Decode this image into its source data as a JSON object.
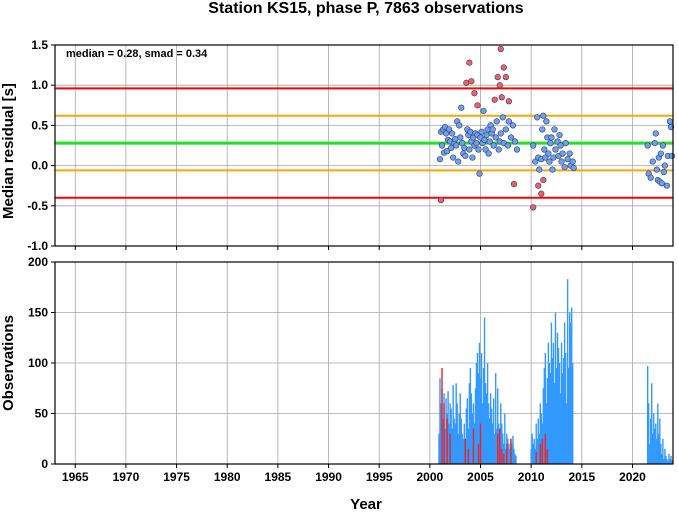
{
  "chart_data": [
    {
      "type": "scatter",
      "title": "Station KS15, phase P, 7863 observations",
      "ylabel": "Median residual [s]",
      "xlabel": "",
      "xlim": [
        1963,
        2024
      ],
      "ylim": [
        -1.0,
        1.5
      ],
      "xticks": [
        1965,
        1970,
        1975,
        1980,
        1985,
        1990,
        1995,
        2000,
        2005,
        2010,
        2015,
        2020
      ],
      "yticks": [
        -1.0,
        -0.5,
        0.0,
        0.5,
        1.0,
        1.5
      ],
      "ytick_labels": [
        "-1.0",
        "-0.5",
        "0.0",
        "0.5",
        "1.0",
        "1.5"
      ],
      "grid": true,
      "annotation": "median = 0.28, smad = 0.34",
      "colors": {
        "inlier": "#6f9fef",
        "outlier": "#f06060",
        "median_line": "#22e022",
        "smad_line": "#ffa500",
        "limit_line": "#ff0000"
      },
      "reference_lines": [
        {
          "name": "median",
          "y": 0.28
        },
        {
          "name": "+1 smad",
          "y": 0.62
        },
        {
          "name": "-1 smad",
          "y": -0.06
        },
        {
          "name": "+2 smad",
          "y": 0.96
        },
        {
          "name": "-2 smad",
          "y": -0.4
        }
      ],
      "series": [
        {
          "role": "inlier",
          "points": [
            [
              2001.0,
              0.08
            ],
            [
              2001.1,
              0.42
            ],
            [
              2001.2,
              0.25
            ],
            [
              2001.3,
              0.45
            ],
            [
              2001.4,
              0.16
            ],
            [
              2001.5,
              0.48
            ],
            [
              2001.6,
              0.4
            ],
            [
              2001.7,
              0.18
            ],
            [
              2001.8,
              0.32
            ],
            [
              2001.9,
              0.45
            ],
            [
              2002.0,
              0.3
            ],
            [
              2002.1,
              0.22
            ],
            [
              2002.2,
              0.4
            ],
            [
              2002.3,
              0.1
            ],
            [
              2002.4,
              0.28
            ],
            [
              2002.5,
              0.33
            ],
            [
              2002.6,
              0.25
            ],
            [
              2002.7,
              0.55
            ],
            [
              2002.8,
              0.05
            ],
            [
              2002.9,
              0.5
            ],
            [
              2003.0,
              0.35
            ],
            [
              2003.1,
              0.72
            ],
            [
              2003.2,
              0.28
            ],
            [
              2003.3,
              0.15
            ],
            [
              2003.4,
              0.22
            ],
            [
              2003.5,
              0.12
            ],
            [
              2003.7,
              0.45
            ],
            [
              2003.8,
              0.38
            ],
            [
              2003.9,
              0.2
            ],
            [
              2004.0,
              0.42
            ],
            [
              2004.1,
              0.3
            ],
            [
              2004.2,
              0.1
            ],
            [
              2004.3,
              0.35
            ],
            [
              2004.4,
              0.25
            ],
            [
              2004.5,
              0.4
            ],
            [
              2004.6,
              0.28
            ],
            [
              2004.7,
              0.38
            ],
            [
              2004.8,
              0.2
            ],
            [
              2004.9,
              -0.1
            ],
            [
              2005.0,
              0.35
            ],
            [
              2005.1,
              0.42
            ],
            [
              2005.2,
              0.28
            ],
            [
              2005.3,
              0.68
            ],
            [
              2005.4,
              0.32
            ],
            [
              2005.5,
              0.2
            ],
            [
              2005.6,
              0.38
            ],
            [
              2005.7,
              0.45
            ],
            [
              2005.8,
              0.15
            ],
            [
              2005.9,
              0.3
            ],
            [
              2006.0,
              0.5
            ],
            [
              2006.1,
              0.4
            ],
            [
              2006.2,
              0.45
            ],
            [
              2006.3,
              0.25
            ],
            [
              2006.5,
              0.35
            ],
            [
              2006.6,
              0.55
            ],
            [
              2006.8,
              0.2
            ],
            [
              2006.9,
              0.3
            ],
            [
              2007.0,
              0.4
            ],
            [
              2007.2,
              0.6
            ],
            [
              2007.3,
              0.28
            ],
            [
              2007.5,
              0.45
            ],
            [
              2007.7,
              0.25
            ],
            [
              2007.8,
              0.55
            ],
            [
              2008.0,
              0.35
            ],
            [
              2008.2,
              0.5
            ],
            [
              2008.4,
              0.3
            ],
            [
              2008.6,
              0.2
            ],
            [
              2010.2,
              0.25
            ],
            [
              2010.4,
              0.05
            ],
            [
              2010.6,
              0.6
            ],
            [
              2010.7,
              0.1
            ],
            [
              2010.8,
              -0.05
            ],
            [
              2011.0,
              0.08
            ],
            [
              2011.1,
              0.45
            ],
            [
              2011.2,
              0.62
            ],
            [
              2011.3,
              0.2
            ],
            [
              2011.4,
              0.1
            ],
            [
              2011.5,
              0.55
            ],
            [
              2011.6,
              0.35
            ],
            [
              2011.7,
              0.15
            ],
            [
              2011.8,
              0.05
            ],
            [
              2011.9,
              0.28
            ],
            [
              2012.0,
              0.35
            ],
            [
              2012.1,
              -0.05
            ],
            [
              2012.2,
              0.1
            ],
            [
              2012.3,
              0.45
            ],
            [
              2012.4,
              0.2
            ],
            [
              2012.6,
              0.3
            ],
            [
              2012.7,
              0.12
            ],
            [
              2012.8,
              0.38
            ],
            [
              2012.9,
              0.25
            ],
            [
              2013.0,
              0.05
            ],
            [
              2013.1,
              0.15
            ],
            [
              2013.3,
              -0.02
            ],
            [
              2013.4,
              0.28
            ],
            [
              2013.6,
              0.08
            ],
            [
              2013.8,
              0.15
            ],
            [
              2013.9,
              0.0
            ],
            [
              2014.1,
              0.05
            ],
            [
              2014.2,
              -0.03
            ],
            [
              2021.5,
              0.25
            ],
            [
              2021.6,
              -0.1
            ],
            [
              2021.8,
              -0.15
            ],
            [
              2022.0,
              0.05
            ],
            [
              2022.2,
              0.28
            ],
            [
              2022.4,
              -0.05
            ],
            [
              2022.5,
              -0.18
            ],
            [
              2022.6,
              0.1
            ],
            [
              2022.7,
              -0.2
            ],
            [
              2022.8,
              0.15
            ],
            [
              2022.9,
              -0.22
            ],
            [
              2023.0,
              0.25
            ],
            [
              2023.2,
              0.0
            ],
            [
              2023.4,
              -0.25
            ],
            [
              2023.5,
              0.12
            ],
            [
              2023.7,
              0.55
            ],
            [
              2023.8,
              0.48
            ],
            [
              2023.9,
              0.12
            ],
            [
              2022.3,
              0.4
            ],
            [
              2023.1,
              -0.08
            ]
          ]
        },
        {
          "role": "outlier",
          "points": [
            [
              2001.1,
              -0.43
            ],
            [
              2003.6,
              1.03
            ],
            [
              2003.9,
              1.28
            ],
            [
              2004.1,
              1.05
            ],
            [
              2004.4,
              0.9
            ],
            [
              2004.7,
              0.75
            ],
            [
              2006.4,
              0.82
            ],
            [
              2006.7,
              1.1
            ],
            [
              2006.9,
              1.0
            ],
            [
              2007.0,
              1.45
            ],
            [
              2007.1,
              0.85
            ],
            [
              2007.3,
              1.22
            ],
            [
              2007.5,
              1.1
            ],
            [
              2007.8,
              0.8
            ],
            [
              2008.3,
              -0.23
            ],
            [
              2010.2,
              -0.52
            ],
            [
              2010.7,
              -0.25
            ],
            [
              2011.0,
              -0.35
            ],
            [
              2011.2,
              -0.18
            ]
          ]
        }
      ]
    },
    {
      "type": "bar",
      "title": "",
      "ylabel": "Observations",
      "xlabel": "Year",
      "xlim": [
        1963,
        2024
      ],
      "ylim": [
        0,
        200
      ],
      "xticks": [
        1965,
        1970,
        1975,
        1980,
        1985,
        1990,
        1995,
        2000,
        2005,
        2010,
        2015,
        2020
      ],
      "yticks": [
        0,
        50,
        100,
        150,
        200
      ],
      "grid": true,
      "colors": {
        "inlier": "#3399ff",
        "outlier": "#ee2222"
      },
      "series": [
        {
          "role": "inlier",
          "x": [
            2000.9,
            2001.0,
            2001.1,
            2001.2,
            2001.3,
            2001.4,
            2001.5,
            2001.6,
            2001.7,
            2001.8,
            2001.9,
            2002.0,
            2002.1,
            2002.2,
            2002.3,
            2002.4,
            2002.5,
            2002.6,
            2002.7,
            2002.8,
            2002.9,
            2003.0,
            2003.1,
            2003.2,
            2003.3,
            2003.4,
            2003.5,
            2003.6,
            2003.7,
            2003.8,
            2003.9,
            2004.0,
            2004.1,
            2004.2,
            2004.3,
            2004.4,
            2004.5,
            2004.6,
            2004.7,
            2004.8,
            2004.9,
            2005.0,
            2005.1,
            2005.2,
            2005.3,
            2005.4,
            2005.5,
            2005.6,
            2005.7,
            2005.8,
            2005.9,
            2006.0,
            2006.1,
            2006.2,
            2006.3,
            2006.4,
            2006.5,
            2006.6,
            2006.7,
            2006.8,
            2006.9,
            2007.0,
            2007.1,
            2007.2,
            2007.3,
            2007.4,
            2007.5,
            2007.6,
            2007.7,
            2007.8,
            2007.9,
            2008.0,
            2008.1,
            2008.2,
            2008.3,
            2008.4,
            2008.5,
            2010.0,
            2010.1,
            2010.2,
            2010.3,
            2010.4,
            2010.5,
            2010.6,
            2010.7,
            2010.8,
            2010.9,
            2011.0,
            2011.1,
            2011.2,
            2011.3,
            2011.4,
            2011.5,
            2011.6,
            2011.7,
            2011.8,
            2011.9,
            2012.0,
            2012.1,
            2012.2,
            2012.3,
            2012.4,
            2012.5,
            2012.6,
            2012.7,
            2012.8,
            2012.9,
            2013.0,
            2013.1,
            2013.2,
            2013.3,
            2013.4,
            2013.5,
            2013.6,
            2013.7,
            2013.8,
            2013.9,
            2014.0,
            2014.1,
            2021.5,
            2021.6,
            2021.7,
            2021.8,
            2021.9,
            2022.0,
            2022.1,
            2022.2,
            2022.3,
            2022.4,
            2022.5,
            2022.6,
            2022.7,
            2022.8,
            2022.9,
            2023.0,
            2023.1,
            2023.2,
            2023.3,
            2023.4,
            2023.5,
            2023.6,
            2023.7,
            2023.8,
            2023.9
          ],
          "values": [
            30,
            85,
            60,
            75,
            45,
            70,
            35,
            65,
            50,
            72,
            40,
            60,
            55,
            35,
            78,
            45,
            40,
            80,
            60,
            30,
            50,
            70,
            45,
            30,
            25,
            40,
            20,
            55,
            65,
            35,
            80,
            95,
            70,
            50,
            60,
            40,
            75,
            100,
            110,
            90,
            120,
            85,
            110,
            60,
            95,
            145,
            80,
            70,
            100,
            60,
            45,
            70,
            55,
            40,
            65,
            30,
            90,
            35,
            75,
            40,
            25,
            60,
            40,
            30,
            20,
            50,
            15,
            30,
            25,
            20,
            15,
            25,
            20,
            28,
            15,
            10,
            8,
            15,
            30,
            20,
            25,
            15,
            40,
            25,
            45,
            30,
            60,
            50,
            40,
            75,
            95,
            110,
            60,
            85,
            120,
            100,
            90,
            140,
            105,
            120,
            80,
            150,
            95,
            130,
            115,
            100,
            70,
            120,
            90,
            105,
            140,
            110,
            60,
            183,
            95,
            150,
            140,
            155,
            100,
            97,
            60,
            20,
            45,
            80,
            30,
            50,
            35,
            40,
            25,
            60,
            30,
            45,
            20,
            10,
            25,
            5,
            15,
            8,
            5,
            3,
            10,
            5,
            8,
            4
          ]
        },
        {
          "role": "outlier",
          "x": [
            2001.2,
            2001.4,
            2001.7,
            2002.0,
            2003.5,
            2003.8,
            2004.3,
            2004.8,
            2005.0,
            2006.7,
            2006.9,
            2007.1,
            2007.3,
            2007.6,
            2008.0,
            2010.5,
            2010.9,
            2011.1,
            2011.4,
            2011.6
          ],
          "values": [
            95,
            60,
            45,
            30,
            25,
            15,
            35,
            20,
            40,
            30,
            35,
            15,
            10,
            20,
            25,
            12,
            20,
            25,
            30,
            15
          ]
        }
      ]
    }
  ]
}
